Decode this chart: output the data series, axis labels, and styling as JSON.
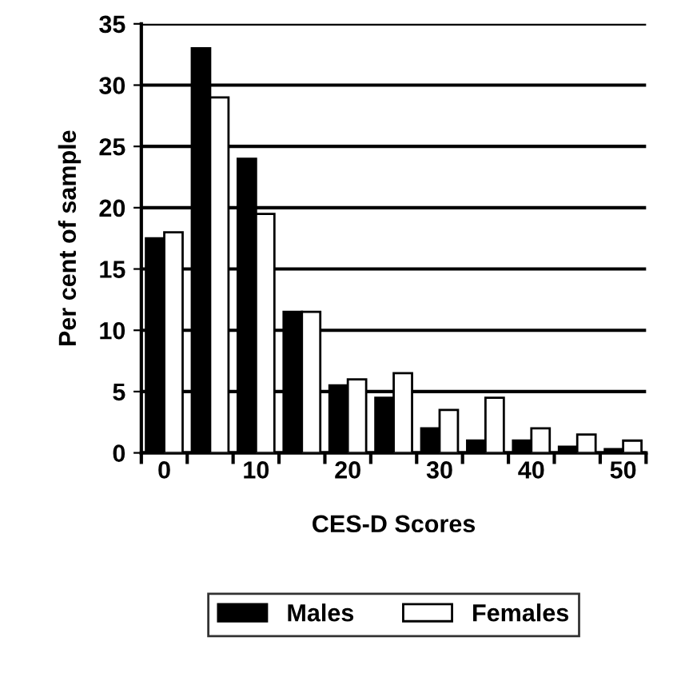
{
  "chart_data": {
    "type": "bar",
    "xlabel": "CES-D Scores",
    "ylabel": "Per cent of sample",
    "categories": [
      "0",
      null,
      "10",
      null,
      "20",
      null,
      "30",
      null,
      "40",
      null,
      "50"
    ],
    "series": [
      {
        "name": "Males",
        "color": "#000000",
        "values": [
          17.5,
          33,
          24,
          11.5,
          5.5,
          4.5,
          2,
          1,
          1,
          0.5,
          0.3
        ]
      },
      {
        "name": "Females",
        "color": "#ffffff",
        "values": [
          18,
          29,
          19.5,
          11.5,
          6,
          6.5,
          3.5,
          4.5,
          2,
          1.5,
          1
        ]
      }
    ],
    "ylim": [
      0,
      35
    ],
    "yticks": [
      0,
      5,
      10,
      15,
      20,
      25,
      30,
      35
    ],
    "grid": "y",
    "legend": "bottom"
  }
}
